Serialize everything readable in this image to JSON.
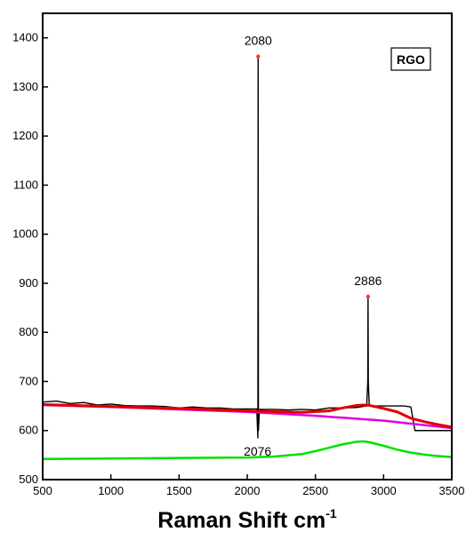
{
  "chart_data": {
    "type": "line",
    "xlabel": "Raman Shift cm",
    "xlabel_superscript": "-1",
    "ylabel": "",
    "xlim": [
      500,
      3500
    ],
    "ylim": [
      500,
      1450
    ],
    "x_ticks": [
      500,
      1000,
      1500,
      2000,
      2500,
      3000,
      3500
    ],
    "y_ticks": [
      500,
      600,
      700,
      800,
      900,
      1000,
      1100,
      1200,
      1300,
      1400
    ],
    "grid": false,
    "legend": {
      "label": "RGO",
      "placement": "top-right"
    },
    "colors": {
      "spectrum": "#000000",
      "fit": "#e00000",
      "baseline": "#e000e0",
      "component": "#00e000",
      "peak_marker": "#ff3030"
    },
    "series": [
      {
        "name": "",
        "role": "measured spectrum",
        "color": "#000000",
        "x": [
          500,
          600,
          700,
          800,
          900,
          1000,
          1100,
          1200,
          1300,
          1400,
          1500,
          1600,
          1700,
          1800,
          1900,
          2000,
          2070,
          2078,
          2080,
          2082,
          2090,
          2200,
          2300,
          2400,
          2500,
          2600,
          2700,
          2800,
          2876,
          2884,
          2886,
          2888,
          2895,
          3000,
          3100,
          3150,
          3200,
          3230,
          3250,
          3300,
          3400,
          3500
        ],
        "y": [
          658,
          660,
          655,
          657,
          652,
          654,
          651,
          650,
          650,
          649,
          646,
          648,
          646,
          646,
          644,
          644,
          644,
          585,
          1362,
          600,
          643,
          643,
          642,
          643,
          642,
          646,
          646,
          647,
          650,
          700,
          873,
          700,
          650,
          650,
          650,
          650,
          648,
          600,
          600,
          600,
          600,
          600
        ]
      },
      {
        "name": "",
        "role": "fitted curve",
        "color": "#e00000",
        "x": [
          500,
          1000,
          1500,
          2000,
          2400,
          2600,
          2700,
          2800,
          2850,
          2900,
          3000,
          3100,
          3200,
          3300,
          3400,
          3500
        ],
        "y": [
          653,
          649,
          645,
          640,
          637,
          640,
          646,
          651,
          652,
          651,
          645,
          638,
          625,
          618,
          612,
          607
        ]
      },
      {
        "name": "",
        "role": "baseline",
        "color": "#e000e0",
        "x": [
          500,
          1000,
          1500,
          2000,
          2500,
          3000,
          3500
        ],
        "y": [
          652,
          648,
          643,
          638,
          630,
          620,
          605
        ]
      },
      {
        "name": "",
        "role": "fitted component",
        "color": "#00e000",
        "x": [
          500,
          1000,
          1500,
          2000,
          2200,
          2400,
          2500,
          2600,
          2700,
          2800,
          2850,
          2900,
          3000,
          3100,
          3200,
          3300,
          3400,
          3500
        ],
        "y": [
          542,
          543,
          544,
          545,
          547,
          552,
          558,
          565,
          572,
          577,
          578,
          576,
          569,
          561,
          555,
          551,
          548,
          546
        ]
      }
    ],
    "annotations": [
      {
        "text": "2080",
        "x": 2080,
        "y": 1362,
        "marker": true
      },
      {
        "text": "2886",
        "x": 2886,
        "y": 873,
        "marker": true
      },
      {
        "text": "2076",
        "x": 2076,
        "y": 560,
        "marker": false
      }
    ]
  }
}
